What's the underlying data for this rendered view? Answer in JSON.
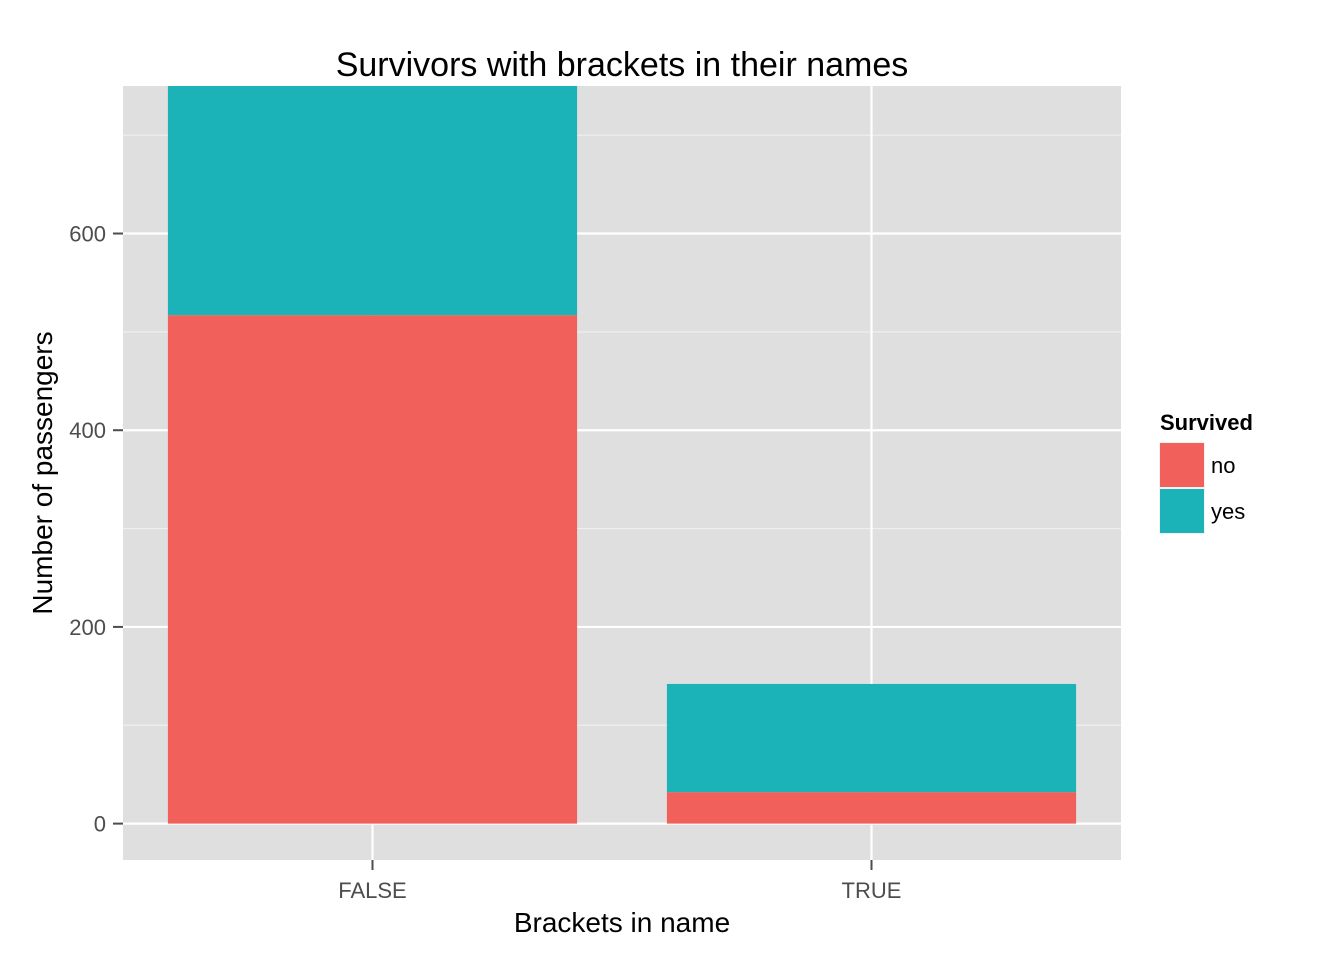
{
  "chart_data": {
    "type": "bar",
    "stacked": true,
    "title": "Survivors with brackets in their names",
    "xlabel": "Brackets in name",
    "ylabel": "Number of passengers",
    "categories": [
      "FALSE",
      "TRUE"
    ],
    "series": [
      {
        "name": "no",
        "values": [
          517,
          32
        ],
        "color": "#f2605b"
      },
      {
        "name": "yes",
        "values": [
          233,
          110
        ],
        "color": "#1bb3b8"
      }
    ],
    "ylim": [
      -37,
      750
    ],
    "yticks": [
      0,
      200,
      400,
      600
    ],
    "ytick_labels": [
      "0",
      "200",
      "400",
      "600"
    ],
    "grid": true,
    "legend": {
      "title": "Survived",
      "position": "right"
    },
    "colors": {
      "panel": "#dfdfdf",
      "grid": "#ffffff",
      "tick": "#4d4d4d"
    }
  }
}
